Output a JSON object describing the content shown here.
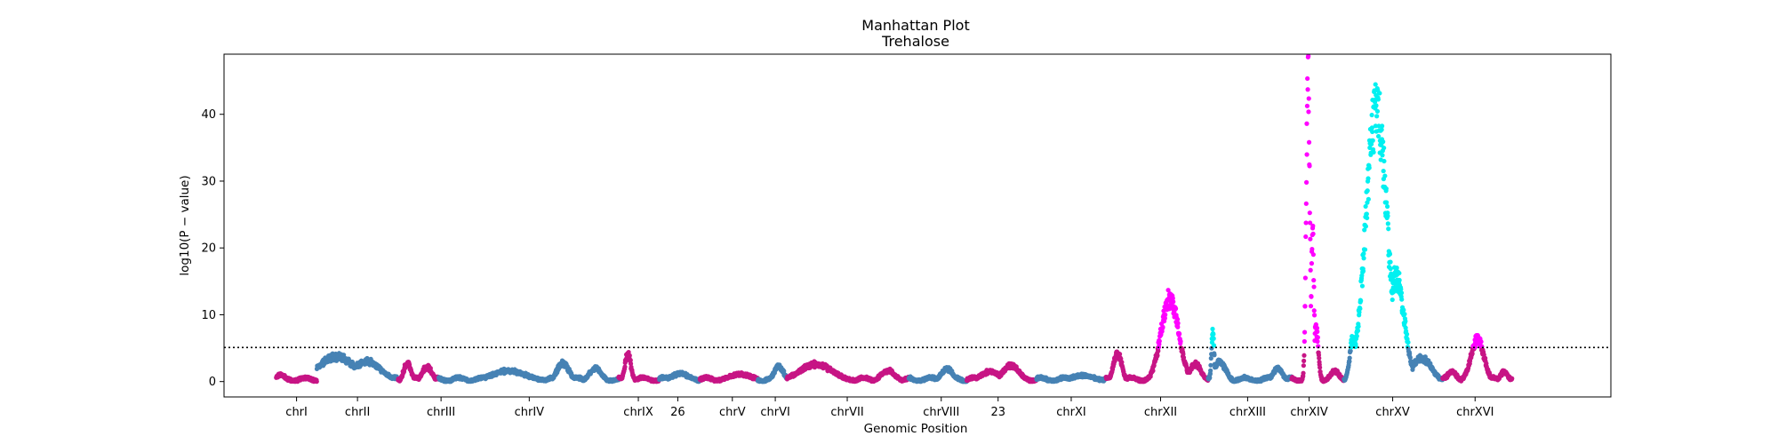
{
  "chart_data": {
    "type": "scatter",
    "title": "Manhattan Plot",
    "subtitle": "Trehalose",
    "xlabel": "Genomic Position",
    "ylabel": "log10(P − value)",
    "ylim": [
      -2.3,
      49.0
    ],
    "yticks": [
      0,
      10,
      20,
      30,
      40
    ],
    "threshold": 5.1,
    "grid": false,
    "legend": "none",
    "colors": {
      "steelblue": "#4682b4",
      "mediumvioletred": "#c71585",
      "magenta": "#ff00ff",
      "cyan": "#00f0f0",
      "threshold_line": "#000000"
    },
    "chromosomes": [
      {
        "label": "chrI",
        "start": 0.0,
        "end": 3.5,
        "tick": 1.75,
        "base": "mediumvioletred",
        "sig": "magenta",
        "peaks": [
          [
            0.4,
            1.0,
            0.4
          ]
        ]
      },
      {
        "label": "chrII",
        "start": 3.5,
        "end": 10.5,
        "tick": 7.0,
        "base": "steelblue",
        "sig": "cyan",
        "peaks": [
          [
            5.2,
            3.7,
            1.6
          ],
          [
            7.8,
            3.0,
            1.2
          ]
        ]
      },
      {
        "label": "chrIII",
        "start": 10.5,
        "end": 14.0,
        "tick": 14.2,
        "base": "mediumvioletred",
        "sig": "magenta",
        "peaks": [
          [
            11.3,
            2.8,
            0.3
          ],
          [
            13.0,
            2.2,
            0.4
          ]
        ]
      },
      {
        "label": "chrIV",
        "start": 14.0,
        "end": 29.5,
        "tick": 21.8,
        "base": "steelblue",
        "sig": "cyan",
        "peaks": [
          [
            20.0,
            1.6,
            1.5
          ],
          [
            24.7,
            2.8,
            0.5
          ],
          [
            27.5,
            2.0,
            0.5
          ]
        ]
      },
      {
        "label": "chrIX",
        "start": 29.5,
        "end": 33.0,
        "tick": 31.2,
        "base": "mediumvioletred",
        "sig": "magenta",
        "peaks": [
          [
            30.3,
            4.2,
            0.25
          ]
        ]
      },
      {
        "label": "26",
        "start": 33.0,
        "end": 36.5,
        "tick": 34.6,
        "base": "steelblue",
        "sig": "cyan",
        "peaks": [
          [
            34.8,
            1.2,
            0.8
          ]
        ]
      },
      {
        "label": "chrV",
        "start": 36.5,
        "end": 41.5,
        "tick": 39.3,
        "base": "mediumvioletred",
        "sig": "magenta",
        "peaks": [
          [
            40.0,
            1.1,
            1.0
          ]
        ]
      },
      {
        "label": "chrVI",
        "start": 41.5,
        "end": 44.0,
        "tick": 43.0,
        "base": "steelblue",
        "sig": "cyan",
        "peaks": [
          [
            43.3,
            2.3,
            0.4
          ]
        ]
      },
      {
        "label": "chrVII",
        "start": 44.0,
        "end": 54.5,
        "tick": 49.2,
        "base": "mediumvioletred",
        "sig": "magenta",
        "peaks": [
          [
            46.5,
            2.6,
            1.4
          ],
          [
            52.7,
            1.6,
            0.6
          ]
        ]
      },
      {
        "label": "chrVIII",
        "start": 54.5,
        "end": 59.5,
        "tick": 57.3,
        "base": "steelblue",
        "sig": "cyan",
        "peaks": [
          [
            57.8,
            1.9,
            0.5
          ]
        ]
      },
      {
        "label": "23",
        "start": 59.5,
        "end": 65.5,
        "tick": 62.2,
        "base": "mediumvioletred",
        "sig": "magenta",
        "peaks": [
          [
            61.5,
            1.5,
            0.8
          ],
          [
            63.3,
            2.4,
            0.7
          ]
        ]
      },
      {
        "label": "chrXI",
        "start": 65.5,
        "end": 71.5,
        "tick": 68.5,
        "base": "steelblue",
        "sig": "cyan",
        "peaks": [
          [
            69.5,
            0.9,
            1.0
          ]
        ]
      },
      {
        "label": "chrXII",
        "start": 71.5,
        "end": 80.3,
        "tick": 76.2,
        "base": "mediumvioletred",
        "sig": "magenta",
        "peaks": [
          [
            72.5,
            4.2,
            0.35
          ],
          [
            77.0,
            12.5,
            0.75
          ],
          [
            79.2,
            2.6,
            0.5
          ]
        ]
      },
      {
        "label": "chrXIII",
        "start": 80.3,
        "end": 87.5,
        "tick": 83.7,
        "base": "steelblue",
        "sig": "cyan",
        "peaks": [
          [
            80.7,
            7.2,
            0.12
          ],
          [
            81.3,
            3.0,
            0.5
          ],
          [
            86.3,
            2.0,
            0.4
          ]
        ]
      },
      {
        "label": "chrXIV",
        "start": 87.5,
        "end": 92.0,
        "tick": 89.0,
        "base": "mediumvioletred",
        "sig": "magenta",
        "peaks": [
          [
            88.9,
            46.5,
            0.15
          ],
          [
            89.3,
            22.0,
            0.12
          ],
          [
            89.6,
            8.0,
            0.2
          ],
          [
            91.2,
            1.6,
            0.4
          ]
        ]
      },
      {
        "label": "chrXV",
        "start": 92.0,
        "end": 100.5,
        "tick": 96.2,
        "base": "steelblue",
        "sig": "cyan",
        "peaks": [
          [
            92.8,
            6.5,
            0.3
          ],
          [
            94.8,
            40.5,
            0.9
          ],
          [
            95.7,
            16.0,
            0.3
          ],
          [
            96.5,
            15.5,
            0.7
          ],
          [
            98.7,
            3.5,
            0.8
          ]
        ]
      },
      {
        "label": "chrXVI",
        "start": 100.5,
        "end": 106.5,
        "tick": 103.3,
        "base": "mediumvioletred",
        "sig": "magenta",
        "peaks": [
          [
            103.5,
            6.3,
            0.55
          ],
          [
            101.3,
            1.5,
            0.4
          ],
          [
            105.8,
            1.5,
            0.3
          ]
        ]
      }
    ]
  }
}
